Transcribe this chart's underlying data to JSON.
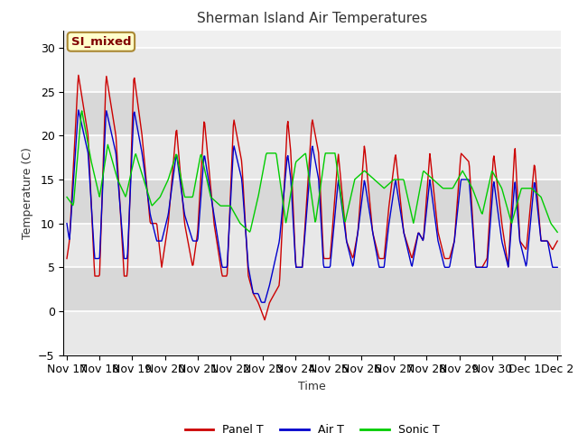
{
  "title": "Sherman Island Air Temperatures",
  "xlabel": "Time",
  "ylabel": "Temperature (C)",
  "ylim": [
    -5,
    32
  ],
  "yticks": [
    -5,
    0,
    5,
    10,
    15,
    20,
    25,
    30
  ],
  "annotation_text": "SI_mixed",
  "annotation_color": "#800000",
  "figure_bg": "#ffffff",
  "plot_bg": "#f0f0f0",
  "grid_color": "#ffffff",
  "line_colors": {
    "panel": "#cc0000",
    "air": "#0000cc",
    "sonic": "#00cc00"
  },
  "line_width": 1.0,
  "legend_labels": [
    "Panel T",
    "Air T",
    "Sonic T"
  ],
  "xtick_labels": [
    "Nov 17",
    "Nov 18",
    "Nov 19",
    "Nov 20",
    "Nov 21",
    "Nov 22",
    "Nov 23",
    "Nov 24",
    "Nov 25",
    "Nov 26",
    "Nov 27",
    "Nov 28",
    "Nov 29",
    "Nov 30",
    "Dec 1",
    "Dec 2"
  ],
  "num_points": 720,
  "panel_kp_d": [
    0,
    0.08,
    0.35,
    0.65,
    0.85,
    1.0,
    1.2,
    1.5,
    1.75,
    1.85,
    2.05,
    2.3,
    2.55,
    2.75,
    2.9,
    3.1,
    3.35,
    3.6,
    3.85,
    4.0,
    4.2,
    4.5,
    4.75,
    4.9,
    5.1,
    5.35,
    5.55,
    5.7,
    5.85,
    5.95,
    6.05,
    6.2,
    6.5,
    6.75,
    6.85,
    7.0,
    7.2,
    7.5,
    7.7,
    7.85,
    8.05,
    8.3,
    8.55,
    8.75,
    8.9,
    9.1,
    9.35,
    9.55,
    9.7,
    9.85,
    10.05,
    10.3,
    10.55,
    10.75,
    10.9,
    11.1,
    11.35,
    11.55,
    11.7,
    11.85,
    12.05,
    12.3,
    12.5,
    12.7,
    12.85,
    13.05,
    13.3,
    13.5,
    13.7,
    13.85,
    14.05,
    14.3,
    14.5,
    14.7,
    14.85,
    15.0
  ],
  "panel_kp_v": [
    6,
    8,
    27,
    20,
    4,
    4,
    27,
    20,
    4,
    4,
    27,
    20,
    10,
    10,
    5,
    10,
    21,
    10,
    5,
    9,
    22,
    10,
    4,
    4,
    22,
    17,
    4,
    2,
    1,
    0,
    -1,
    1,
    3,
    22,
    18,
    5,
    5,
    22,
    18,
    6,
    6,
    18,
    8,
    6,
    9,
    19,
    9,
    6,
    6,
    12,
    18,
    9,
    6,
    9,
    8,
    18,
    9,
    6,
    6,
    8,
    18,
    17,
    5,
    5,
    6,
    18,
    10,
    5,
    19,
    8,
    7,
    17,
    8,
    8,
    7,
    8
  ],
  "air_kp_d": [
    0,
    0.08,
    0.35,
    0.65,
    0.85,
    1.0,
    1.2,
    1.5,
    1.75,
    1.85,
    2.05,
    2.3,
    2.55,
    2.75,
    2.9,
    3.1,
    3.35,
    3.6,
    3.85,
    4.0,
    4.2,
    4.5,
    4.75,
    4.9,
    5.1,
    5.35,
    5.55,
    5.7,
    5.85,
    5.95,
    6.05,
    6.2,
    6.5,
    6.75,
    6.85,
    7.0,
    7.2,
    7.5,
    7.7,
    7.85,
    8.05,
    8.3,
    8.55,
    8.75,
    8.9,
    9.1,
    9.35,
    9.55,
    9.7,
    9.85,
    10.05,
    10.3,
    10.55,
    10.75,
    10.9,
    11.1,
    11.35,
    11.55,
    11.7,
    11.85,
    12.05,
    12.3,
    12.5,
    12.7,
    12.85,
    13.05,
    13.3,
    13.5,
    13.7,
    13.85,
    14.05,
    14.3,
    14.5,
    14.7,
    14.85,
    15.0
  ],
  "air_kp_v": [
    10,
    8,
    23,
    18,
    6,
    6,
    23,
    18,
    6,
    6,
    23,
    18,
    11,
    8,
    8,
    11,
    18,
    11,
    8,
    8,
    18,
    11,
    5,
    5,
    19,
    15,
    5,
    2,
    2,
    1,
    1,
    3,
    8,
    18,
    15,
    5,
    5,
    19,
    15,
    5,
    5,
    15,
    8,
    5,
    9,
    15,
    9,
    5,
    5,
    10,
    15,
    9,
    5,
    9,
    8,
    15,
    8,
    5,
    5,
    8,
    15,
    15,
    5,
    5,
    5,
    15,
    8,
    5,
    15,
    8,
    5,
    15,
    8,
    8,
    5,
    5
  ],
  "sonic_kp_d": [
    0,
    0.2,
    0.45,
    0.75,
    1.0,
    1.25,
    1.55,
    1.8,
    2.1,
    2.35,
    2.6,
    2.85,
    3.1,
    3.35,
    3.6,
    3.85,
    4.1,
    4.4,
    4.7,
    5.0,
    5.3,
    5.6,
    5.85,
    6.1,
    6.4,
    6.7,
    7.0,
    7.3,
    7.6,
    7.9,
    8.2,
    8.5,
    8.8,
    9.1,
    9.4,
    9.7,
    10.0,
    10.3,
    10.6,
    10.9,
    11.2,
    11.5,
    11.8,
    12.1,
    12.4,
    12.7,
    13.0,
    13.3,
    13.6,
    13.9,
    14.2,
    14.5,
    14.8,
    15.0
  ],
  "sonic_kp_v": [
    13,
    12,
    23,
    17,
    13,
    19,
    15,
    13,
    18,
    15,
    12,
    13,
    15,
    18,
    13,
    13,
    18,
    13,
    12,
    12,
    10,
    9,
    13,
    18,
    18,
    10,
    17,
    18,
    10,
    18,
    18,
    10,
    15,
    16,
    15,
    14,
    15,
    15,
    10,
    16,
    15,
    14,
    14,
    16,
    14,
    11,
    16,
    14,
    10,
    14,
    14,
    13,
    10,
    9
  ]
}
